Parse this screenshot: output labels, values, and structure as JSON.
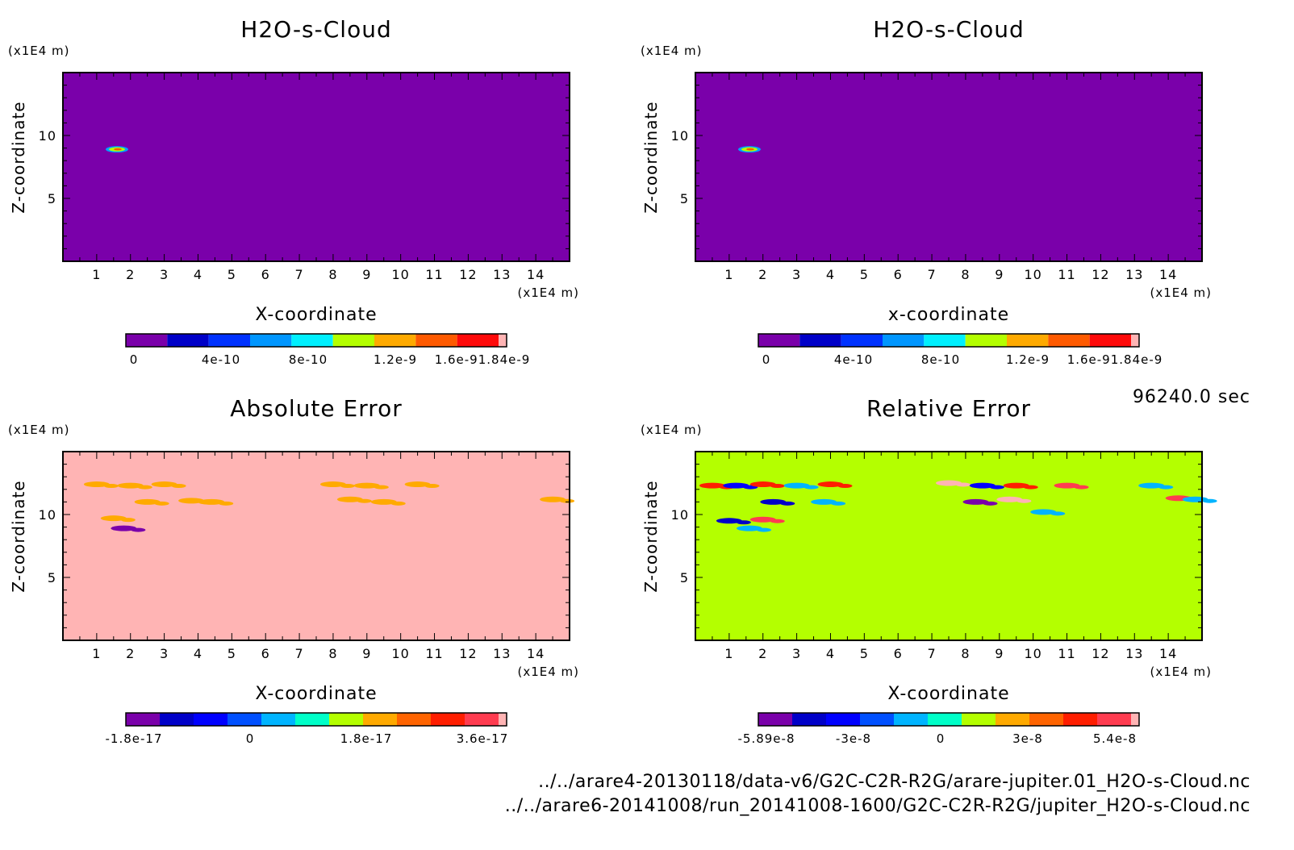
{
  "time_label": "96240.0 sec",
  "footer": {
    "line1": "../../arare4-20130118/data-v6/G2C-C2R-R2G/arare-jupiter.01_H2O-s-Cloud.nc",
    "line2": "../../arare6-20141008/run_20141008-1600/G2C-C2R-R2G/jupiter_H2O-s-Cloud.nc"
  },
  "chart_data": [
    {
      "type": "heatmap",
      "title": "H2O-s-Cloud",
      "xlabel": "X-coordinate",
      "ylabel": "Z-coordinate",
      "x_unit": "(x1E4 m)",
      "y_unit": "(x1E4 m)",
      "xlim": [
        0,
        15
      ],
      "ylim": [
        0,
        15
      ],
      "x_ticks": [
        1,
        2,
        3,
        4,
        5,
        6,
        7,
        8,
        9,
        10,
        11,
        12,
        13,
        14
      ],
      "y_ticks": [
        5,
        10
      ],
      "background_value": 0,
      "features": [
        {
          "kind": "cloud",
          "x": 1.6,
          "z": 8.9,
          "value": 1.84e-09
        }
      ],
      "colorbar": {
        "colors": [
          "#7a00aa",
          "#0000c8",
          "#0032ff",
          "#0096ff",
          "#00f0ff",
          "#b4ff00",
          "#ffaa00",
          "#ff5a00",
          "#ff0a0a",
          "#ffb4b4"
        ],
        "tick_labels": [
          "0",
          "4e-10",
          "8e-10",
          "1.2e-9",
          "1.6e-91.84e-9"
        ]
      }
    },
    {
      "type": "heatmap",
      "title": "H2O-s-Cloud",
      "xlabel": "x-coordinate",
      "ylabel": "Z-coordinate",
      "x_unit": "(x1E4 m)",
      "y_unit": "(x1E4 m)",
      "xlim": [
        0,
        15
      ],
      "ylim": [
        0,
        15
      ],
      "x_ticks": [
        1,
        2,
        3,
        4,
        5,
        6,
        7,
        8,
        9,
        10,
        11,
        12,
        13,
        14
      ],
      "y_ticks": [
        5,
        10
      ],
      "background_value": 0,
      "features": [
        {
          "kind": "cloud",
          "x": 1.6,
          "z": 8.9,
          "value": 1.84e-09
        }
      ],
      "colorbar": {
        "colors": [
          "#7a00aa",
          "#0000c8",
          "#0032ff",
          "#0096ff",
          "#00f0ff",
          "#b4ff00",
          "#ffaa00",
          "#ff5a00",
          "#ff0a0a",
          "#ffb4b4"
        ],
        "tick_labels": [
          "0",
          "4e-10",
          "8e-10",
          "1.2e-9",
          "1.6e-91.84e-9"
        ]
      }
    },
    {
      "type": "heatmap",
      "title": "Absolute Error",
      "xlabel": "X-coordinate",
      "ylabel": "Z-coordinate",
      "x_unit": "(x1E4 m)",
      "y_unit": "(x1E4 m)",
      "xlim": [
        0,
        15
      ],
      "ylim": [
        0,
        15
      ],
      "x_ticks": [
        1,
        2,
        3,
        4,
        5,
        6,
        7,
        8,
        9,
        10,
        11,
        12,
        13,
        14
      ],
      "y_ticks": [
        5,
        10
      ],
      "background_value": 0,
      "features": [
        {
          "x": 1.0,
          "z": 12.4,
          "value": -9e-18
        },
        {
          "x": 2.0,
          "z": 12.3,
          "value": -9e-18
        },
        {
          "x": 3.0,
          "z": 12.4,
          "value": -9e-18
        },
        {
          "x": 2.5,
          "z": 11.0,
          "value": -9e-18
        },
        {
          "x": 3.8,
          "z": 11.1,
          "value": -9e-18
        },
        {
          "x": 4.4,
          "z": 11.0,
          "value": -9e-18
        },
        {
          "x": 1.5,
          "z": 9.7,
          "value": -9e-18
        },
        {
          "x": 1.8,
          "z": 8.9,
          "value": -2.5e-17
        },
        {
          "x": 8.0,
          "z": 12.4,
          "value": -9e-18
        },
        {
          "x": 9.0,
          "z": 12.3,
          "value": -9e-18
        },
        {
          "x": 8.5,
          "z": 11.2,
          "value": -9e-18
        },
        {
          "x": 9.5,
          "z": 11.0,
          "value": -9e-18
        },
        {
          "x": 10.5,
          "z": 12.4,
          "value": -9e-18
        },
        {
          "x": 14.5,
          "z": 11.2,
          "value": -9e-18
        }
      ],
      "colorbar": {
        "colors": [
          "#7a00aa",
          "#0000c8",
          "#0000ff",
          "#0050ff",
          "#00b4ff",
          "#00ffc8",
          "#b4ff00",
          "#ffaa00",
          "#ff6400",
          "#ff1e00",
          "#ff3c50",
          "#ffb4b4"
        ],
        "tick_labels": [
          "-1.8e-17",
          "0",
          "1.8e-17",
          "3.6e-17"
        ]
      }
    },
    {
      "type": "heatmap",
      "title": "Relative Error",
      "xlabel": "X-coordinate",
      "ylabel": "Z-coordinate",
      "x_unit": "(x1E4 m)",
      "y_unit": "(x1E4 m)",
      "xlim": [
        0,
        15
      ],
      "ylim": [
        0,
        15
      ],
      "x_ticks": [
        1,
        2,
        3,
        4,
        5,
        6,
        7,
        8,
        9,
        10,
        11,
        12,
        13,
        14
      ],
      "y_ticks": [
        5,
        10
      ],
      "background_value": 0,
      "features": [
        {
          "x": 0.5,
          "z": 12.3,
          "value": 2e-08
        },
        {
          "x": 1.2,
          "z": 12.3,
          "value": -3e-08
        },
        {
          "x": 2.0,
          "z": 12.4,
          "value": 2e-08
        },
        {
          "x": 3.0,
          "z": 12.3,
          "value": -2e-08
        },
        {
          "x": 4.0,
          "z": 12.4,
          "value": 2e-08
        },
        {
          "x": 2.3,
          "z": 11.0,
          "value": -4e-08
        },
        {
          "x": 3.8,
          "z": 11.0,
          "value": -2e-08
        },
        {
          "x": 1.0,
          "z": 9.5,
          "value": -4e-08
        },
        {
          "x": 2.0,
          "z": 9.6,
          "value": 3e-08
        },
        {
          "x": 1.6,
          "z": 8.9,
          "value": -2e-08
        },
        {
          "x": 7.5,
          "z": 12.5,
          "value": 4e-08
        },
        {
          "x": 8.5,
          "z": 12.3,
          "value": -3e-08
        },
        {
          "x": 9.5,
          "z": 12.3,
          "value": 2e-08
        },
        {
          "x": 8.3,
          "z": 11.0,
          "value": -5e-08
        },
        {
          "x": 9.3,
          "z": 11.2,
          "value": 4e-08
        },
        {
          "x": 10.3,
          "z": 10.2,
          "value": -2e-08
        },
        {
          "x": 11.0,
          "z": 12.3,
          "value": 3e-08
        },
        {
          "x": 13.5,
          "z": 12.3,
          "value": -2e-08
        },
        {
          "x": 14.3,
          "z": 11.3,
          "value": 3e-08
        },
        {
          "x": 14.8,
          "z": 11.2,
          "value": -2e-08
        }
      ],
      "colorbar": {
        "colors": [
          "#7a00aa",
          "#0000c8",
          "#0000ff",
          "#0050ff",
          "#00b4ff",
          "#00ffc8",
          "#b4ff00",
          "#ffaa00",
          "#ff6400",
          "#ff1e00",
          "#ff3c50",
          "#ffb4b4"
        ],
        "tick_labels": [
          "-5.89e-8",
          "-3e-8",
          "0",
          "3e-8",
          "5.4e-8"
        ]
      }
    }
  ]
}
